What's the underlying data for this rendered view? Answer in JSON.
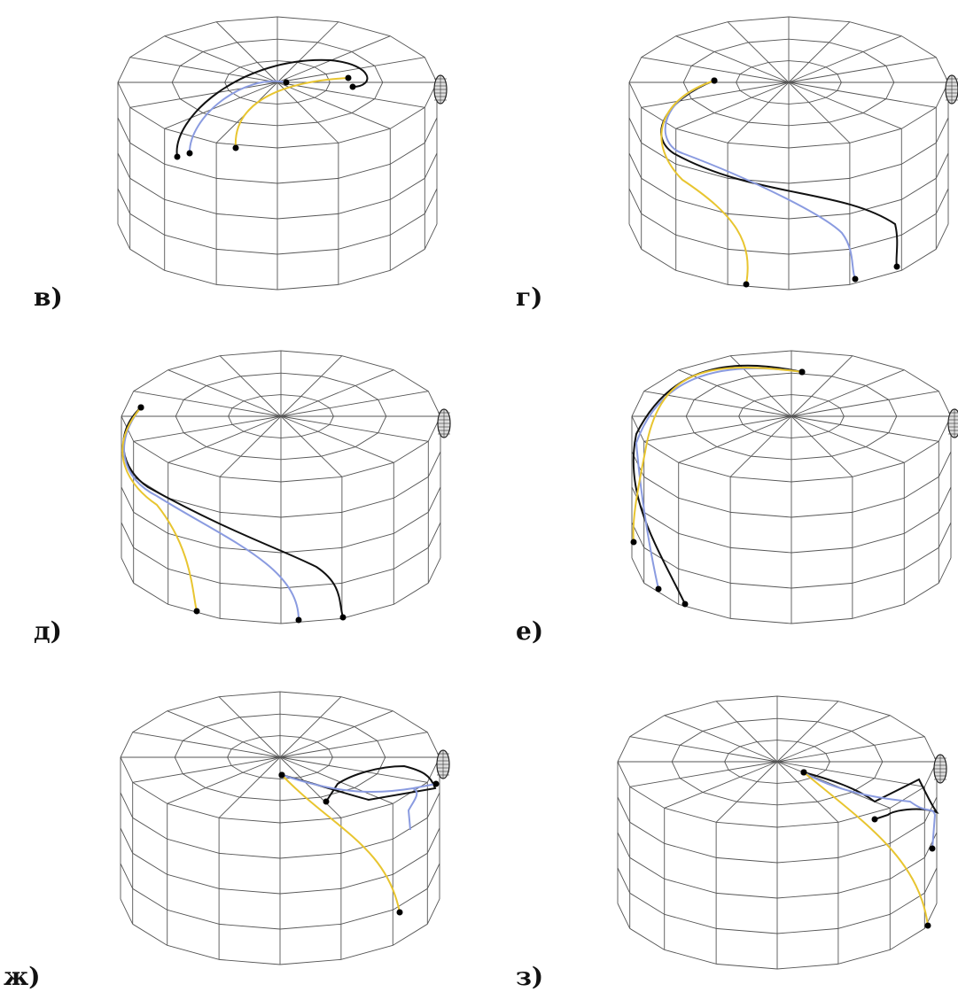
{
  "panels": [
    {
      "label": "в)"
    },
    {
      "label": "г)"
    },
    {
      "label": "д)"
    },
    {
      "label": "е)"
    },
    {
      "label": "ж)"
    },
    {
      "label": "з)"
    }
  ]
}
